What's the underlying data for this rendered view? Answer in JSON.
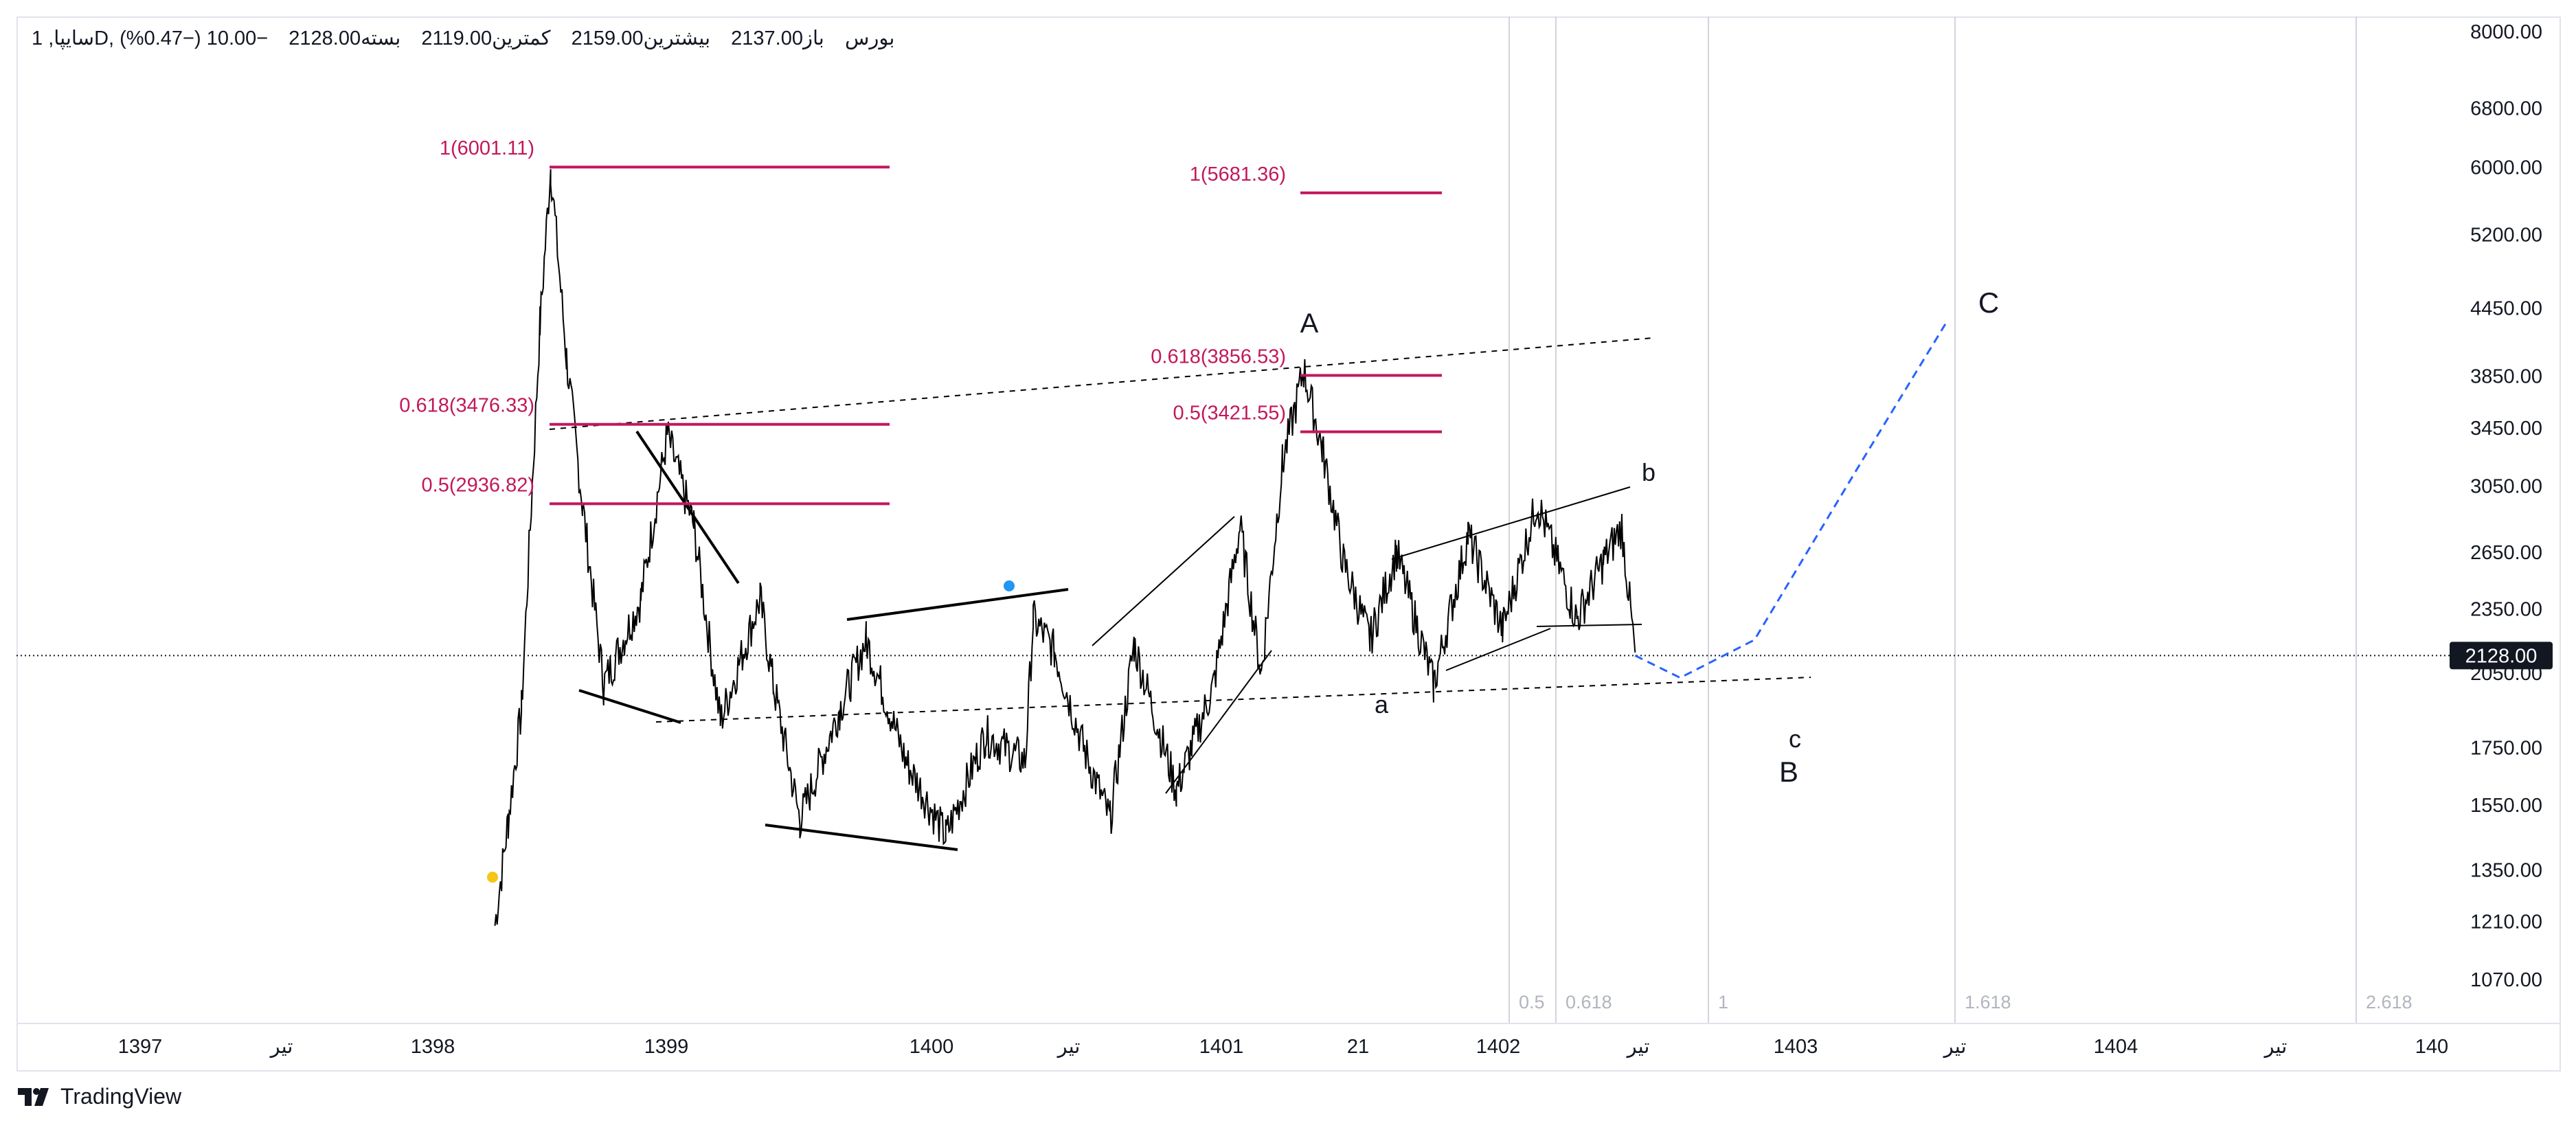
{
  "legend": {
    "symbol": "سایپا, 1D, بورس",
    "open": "باز2137.00",
    "high": "بیشترین2159.00",
    "low": "کمترین2119.00",
    "close": "بسته2128.00",
    "change": "−10.00 (−0.47%)"
  },
  "brand": "TradingView",
  "chart_data": {
    "type": "line",
    "title": "",
    "xlabel": "",
    "ylabel": "",
    "scale": "log",
    "ylim": [
      950,
      8200
    ],
    "y_ticks": [
      "8000.00",
      "6800.00",
      "6000.00",
      "5200.00",
      "4450.00",
      "3850.00",
      "3450.00",
      "3050.00",
      "2650.00",
      "2350.00",
      "2050.00",
      "1750.00",
      "1550.00",
      "1350.00",
      "1210.00",
      "1070.00"
    ],
    "x_ticks": [
      "1397",
      "تیر",
      "1398",
      "1399",
      "1400",
      "تیر",
      "1401",
      "21",
      "1402",
      "تیر",
      "1403",
      "تیر",
      "1404",
      "تیر",
      "140"
    ],
    "last_price": 2128.0,
    "last_price_label": "2128.00",
    "grid": false,
    "series": [
      {
        "values_approx": [
          [
            "1398.25",
            1200
          ],
          [
            "1398.30",
            1500
          ],
          [
            "1398.35",
            1900
          ],
          [
            "1398.42",
            4300
          ],
          [
            "1398.46",
            6001.11
          ],
          [
            "1398.52",
            4000
          ],
          [
            "1398.58",
            2936.82
          ],
          [
            "1398.66",
            2000
          ],
          [
            "1398.80",
            2400
          ],
          [
            "1398.90",
            3400
          ],
          [
            "1399.00",
            2800
          ],
          [
            "1399.10",
            1850
          ],
          [
            "1399.25",
            2400
          ],
          [
            "1399.30",
            2000
          ],
          [
            "1399.40",
            1500
          ],
          [
            "1399.55",
            1900
          ],
          [
            "1399.65",
            2200
          ],
          [
            "1399.80",
            1700
          ],
          [
            "1399.95",
            1450
          ],
          [
            "1400.10",
            1800
          ],
          [
            "1400.25",
            1700
          ],
          [
            "1400.28",
            2300
          ],
          [
            "1400.36",
            2150
          ],
          [
            "1400.47",
            1750
          ],
          [
            "1400.57",
            1500
          ],
          [
            "1400.66",
            2180
          ],
          [
            "1400.82",
            1600
          ],
          [
            "1400.96",
            2000
          ],
          [
            "1401.06",
            2800
          ],
          [
            "1401.14",
            2050
          ],
          [
            "1401.22",
            3200
          ],
          [
            "1401.30",
            3900
          ],
          [
            "1401.37",
            3300
          ],
          [
            "1401.45",
            2600
          ],
          [
            "1401.55",
            2200
          ],
          [
            "1401.65",
            2650
          ],
          [
            "1401.79",
            2000
          ],
          [
            "1401.92",
            2750
          ],
          [
            "1402.05",
            2250
          ],
          [
            "1402.18",
            2950
          ],
          [
            "1402.33",
            2300
          ],
          [
            "1402.43",
            2600
          ],
          [
            "1402.50",
            2800
          ],
          [
            "1402.55",
            2128
          ]
        ]
      }
    ],
    "projection": [
      [
        "1402.55",
        2128
      ],
      [
        "1402.72",
        2030
      ],
      [
        "1403.00",
        2200
      ],
      [
        "1403.40",
        3200
      ],
      [
        "1403.72",
        4300
      ]
    ],
    "fib_levels": [
      {
        "label": "1(6001.11)",
        "value": 6001.11
      },
      {
        "label": "0.618(3476.33)",
        "value": 3476.33
      },
      {
        "label": "0.5(2936.82)",
        "value": 2936.82
      },
      {
        "label": "1(5681.36)",
        "value": 5681.36
      },
      {
        "label": "0.618(3856.53)",
        "value": 3856.53
      },
      {
        "label": "0.5(3421.55)",
        "value": 3421.55
      }
    ],
    "time_fib_labels": [
      "0.5",
      "0.618",
      "1",
      "1.618",
      "2.618"
    ],
    "wave_labels": [
      "A",
      "b",
      "a",
      "c",
      "B",
      "C"
    ]
  }
}
